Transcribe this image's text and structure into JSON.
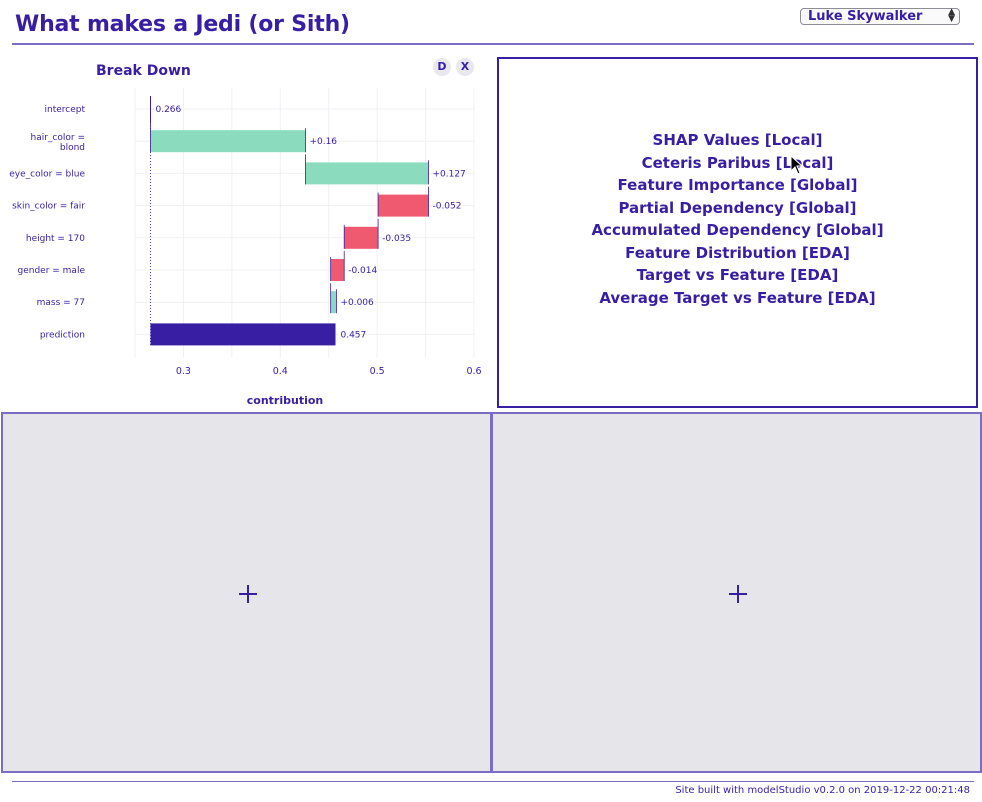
{
  "header": {
    "title": "What makes a Jedi (or Sith)",
    "observation_select": "Luke Skywalker"
  },
  "panel_buttons": {
    "d_label": "D",
    "x_label": "X"
  },
  "chart_data": {
    "type": "bar",
    "subtype": "waterfall",
    "title": "Break Down",
    "xlabel": "contribution",
    "xlim": [
      0.25,
      0.6
    ],
    "xticks": [
      0.3,
      0.4,
      0.5,
      0.6
    ],
    "grid": true,
    "baseline": 0.266,
    "colors": {
      "positive": "#8bdcbe",
      "negative": "#f05a71",
      "prediction": "#371ea3"
    },
    "rows": [
      {
        "label": "intercept",
        "value": 0.266,
        "value_label": "0.266",
        "kind": "intercept"
      },
      {
        "label": "hair_color = blond",
        "value": 0.16,
        "value_label": "+0.16",
        "kind": "positive"
      },
      {
        "label": "eye_color = blue",
        "value": 0.127,
        "value_label": "+0.127",
        "kind": "positive"
      },
      {
        "label": "skin_color = fair",
        "value": -0.052,
        "value_label": "-0.052",
        "kind": "negative"
      },
      {
        "label": "height = 170",
        "value": -0.035,
        "value_label": "-0.035",
        "kind": "negative"
      },
      {
        "label": "gender = male",
        "value": -0.014,
        "value_label": "-0.014",
        "kind": "negative"
      },
      {
        "label": "mass = 77",
        "value": 0.006,
        "value_label": "+0.006",
        "kind": "positive"
      },
      {
        "label": "prediction",
        "value": 0.457,
        "value_label": "0.457",
        "kind": "prediction"
      }
    ]
  },
  "menu": {
    "items": [
      "SHAP Values [Local]",
      "Ceteris Paribus [Local]",
      "Feature Importance [Global]",
      "Partial Dependency [Global]",
      "Accumulated Dependency [Global]",
      "Feature Distribution [EDA]",
      "Target vs Feature [EDA]",
      "Average Target vs Feature [EDA]"
    ]
  },
  "footer": {
    "text": "Site built with modelStudio v0.2.0 on 2019-12-22 00:21:48"
  }
}
